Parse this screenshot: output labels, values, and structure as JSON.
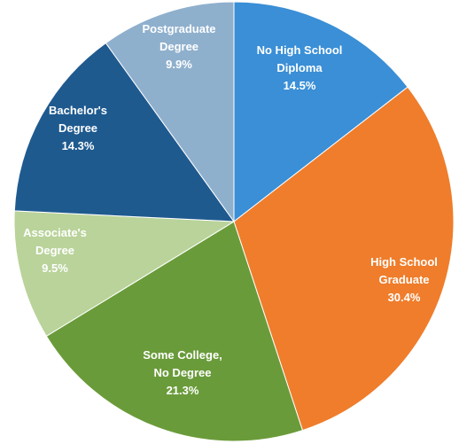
{
  "chart_data": {
    "type": "pie",
    "title": "",
    "slices": [
      {
        "label": [
          "No High School",
          "Diploma"
        ],
        "value": 14.5,
        "value_label": "14.5%",
        "color": "#3a8fd6",
        "label_color": "#ffffff"
      },
      {
        "label": [
          "High School",
          "Graduate"
        ],
        "value": 30.4,
        "value_label": "30.4%",
        "color": "#ef7d2b",
        "label_color": "#ffffff"
      },
      {
        "label": [
          "Some College,",
          "No Degree"
        ],
        "value": 21.3,
        "value_label": "21.3%",
        "color": "#6a9b3a",
        "label_color": "#ffffff"
      },
      {
        "label": [
          "Associate's",
          "Degree"
        ],
        "value": 9.5,
        "value_label": "9.5%",
        "color": "#b9d39a",
        "label_color": "#1f2d3a"
      },
      {
        "label": [
          "Bachelor's",
          "Degree"
        ],
        "value": 14.3,
        "value_label": "14.3%",
        "color": "#1f5a8f",
        "label_color": "#ffffff"
      },
      {
        "label": [
          "Postgraduate",
          "Degree"
        ],
        "value": 9.9,
        "value_label": "9.9%",
        "color": "#8fb0cd",
        "label_color": "#1f2d3a"
      }
    ],
    "start_angle_deg": 0,
    "direction": "clockwise"
  }
}
